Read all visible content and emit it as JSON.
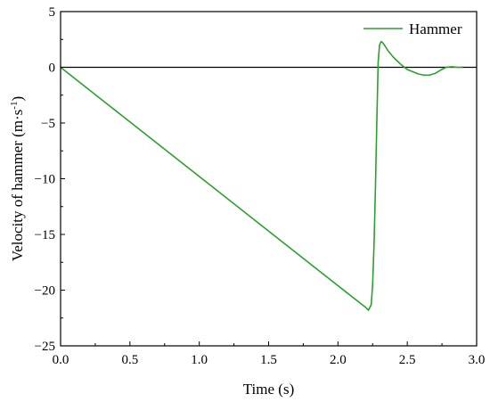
{
  "chart_data": {
    "type": "line",
    "title": "",
    "xlabel": "Time (s)",
    "ylabel": "Velocity of hammer",
    "ylabel_unit_base": "m·s",
    "ylabel_unit_exponent": "-1",
    "xlim": [
      0.0,
      3.0
    ],
    "ylim": [
      -25,
      5
    ],
    "xticks": [
      "0.0",
      "0.5",
      "1.0",
      "1.5",
      "2.0",
      "2.5",
      "3.0"
    ],
    "yticks": [
      "5",
      "0",
      "−5",
      "−10",
      "−15",
      "−20",
      "−25"
    ],
    "x_tick_values": [
      0.0,
      0.5,
      1.0,
      1.5,
      2.0,
      2.5,
      3.0
    ],
    "y_tick_values": [
      5,
      0,
      -5,
      -10,
      -15,
      -20,
      -25
    ],
    "reference_line_y": 0,
    "legend_position": "top-right",
    "series": [
      {
        "name": "Hammer",
        "color": "#2ca02c",
        "x": [
          0.0,
          0.5,
          1.0,
          1.5,
          2.0,
          2.2,
          2.22,
          2.24,
          2.25,
          2.26,
          2.27,
          2.28,
          2.29,
          2.3,
          2.31,
          2.32,
          2.34,
          2.36,
          2.4,
          2.45,
          2.5,
          2.54,
          2.58,
          2.62,
          2.66,
          2.7,
          2.74,
          2.78,
          2.82,
          2.86,
          2.9
        ],
        "y": [
          0.0,
          -4.9,
          -9.8,
          -14.7,
          -19.6,
          -21.55,
          -21.8,
          -21.3,
          -19.5,
          -16.0,
          -11.0,
          -5.0,
          0.5,
          2.0,
          2.3,
          2.25,
          1.9,
          1.5,
          0.9,
          0.3,
          -0.2,
          -0.4,
          -0.6,
          -0.7,
          -0.7,
          -0.55,
          -0.25,
          0.0,
          0.05,
          0.0,
          0.0
        ]
      }
    ]
  }
}
